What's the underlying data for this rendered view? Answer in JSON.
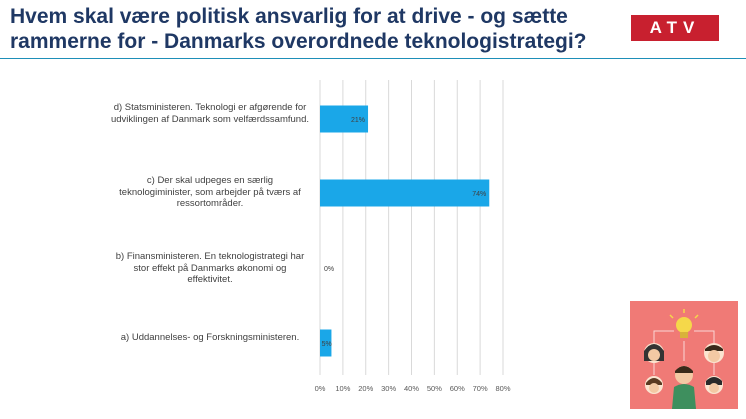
{
  "title": "Hvem skal være politisk ansvarlig for at drive - og sætte rammerne for - Danmarks overordnede teknologistrategi?",
  "logo_text": "ATV",
  "colors": {
    "title": "#1f3864",
    "bar": "#1aa7e8",
    "logo": "#c8202f",
    "illustration_bg": "#f07a76"
  },
  "illustration": "people-network-lightbulb-icon",
  "chart_data": {
    "type": "bar",
    "orientation": "horizontal",
    "categories": [
      "d)   Statsministeren. Teknologi er afgørende for udviklingen af Danmark som velfærdssamfund.",
      "c)   Der skal udpeges en særlig teknologiminister, som arbejder på tværs af ressortområder.",
      "b)   Finansministeren. En teknologistrategi har stor effekt på Danmarks økonomi og effektivitet.",
      "a)   Uddannelses- og Forskningsministeren."
    ],
    "values": [
      21,
      74,
      0,
      5
    ],
    "data_labels": [
      "21%",
      "74%",
      "0%",
      "5%"
    ],
    "xlim": [
      0,
      80
    ],
    "xticks": [
      "0%",
      "10%",
      "20%",
      "30%",
      "40%",
      "50%",
      "60%",
      "70%",
      "80%"
    ],
    "grid": true
  }
}
